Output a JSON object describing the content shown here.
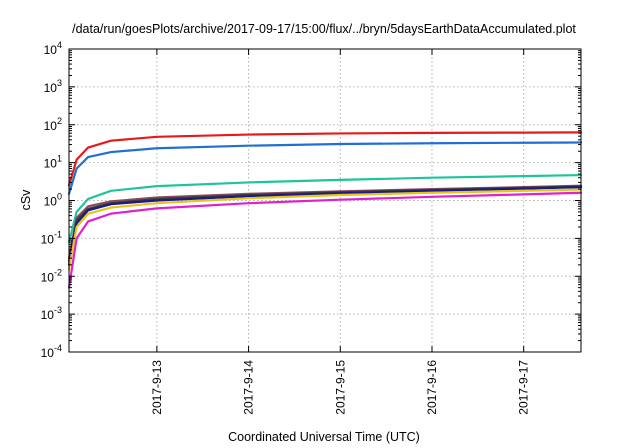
{
  "chart_data": {
    "type": "line",
    "title": "/data/run/goesPlots/archive/2017-09-17/15:00/flux/../bryn/5daysEarthDataAccumulated.plot",
    "xlabel": "Coordinated Universal Time (UTC)",
    "ylabel": "cSv",
    "y_scale": "log",
    "ylim": [
      0.0001,
      10000
    ],
    "y_ticks": [
      {
        "value": 0.0001,
        "base": "10",
        "exp": "-4"
      },
      {
        "value": 0.001,
        "base": "10",
        "exp": "-3"
      },
      {
        "value": 0.01,
        "base": "10",
        "exp": "-2"
      },
      {
        "value": 0.1,
        "base": "10",
        "exp": "-1"
      },
      {
        "value": 1,
        "base": "10",
        "exp": "0"
      },
      {
        "value": 10,
        "base": "10",
        "exp": "1"
      },
      {
        "value": 100,
        "base": "10",
        "exp": "2"
      },
      {
        "value": 1000,
        "base": "10",
        "exp": "3"
      },
      {
        "value": 10000,
        "base": "10",
        "exp": "4"
      }
    ],
    "xlim": [
      "2017-09-12 01:00",
      "2017-09-17 15:00"
    ],
    "x_ticks": [
      "2017-9-13",
      "2017-9-14",
      "2017-9-15",
      "2017-9-16",
      "2017-9-17"
    ],
    "grid": true,
    "x": [
      "2017-09-12 01:00",
      "2017-09-12 03:00",
      "2017-09-12 06:00",
      "2017-09-12 12:00",
      "2017-09-13 00:00",
      "2017-09-14 00:00",
      "2017-09-15 00:00",
      "2017-09-16 00:00",
      "2017-09-17 00:00",
      "2017-09-17 15:00"
    ],
    "series": [
      {
        "color": "#e41a1c",
        "values": [
          2.5,
          12,
          25,
          38,
          48,
          55,
          59,
          61,
          62,
          63
        ]
      },
      {
        "color": "#1f6fd6",
        "values": [
          1.5,
          7,
          14,
          19,
          24,
          28,
          31,
          32.5,
          33.5,
          34
        ]
      },
      {
        "color": "#20c49a",
        "values": [
          0.08,
          0.5,
          1.1,
          1.8,
          2.4,
          3.0,
          3.5,
          4.0,
          4.4,
          4.7
        ]
      },
      {
        "color": "#8b4c5c",
        "values": [
          0.03,
          0.35,
          0.7,
          0.95,
          1.2,
          1.5,
          1.75,
          2.0,
          2.25,
          2.45
        ]
      },
      {
        "color": "#3d3d3d",
        "values": [
          0.025,
          0.3,
          0.6,
          0.85,
          1.1,
          1.4,
          1.65,
          1.9,
          2.15,
          2.35
        ]
      },
      {
        "color": "#1a1a8c",
        "values": [
          0.02,
          0.25,
          0.55,
          0.8,
          1.0,
          1.3,
          1.55,
          1.8,
          2.05,
          2.25
        ]
      },
      {
        "color": "#e6c619",
        "values": [
          0.015,
          0.2,
          0.45,
          0.65,
          0.85,
          1.15,
          1.4,
          1.6,
          1.8,
          1.95
        ]
      },
      {
        "color": "#e020d0",
        "values": [
          0.005,
          0.1,
          0.28,
          0.45,
          0.62,
          0.85,
          1.05,
          1.25,
          1.45,
          1.6
        ]
      }
    ]
  }
}
